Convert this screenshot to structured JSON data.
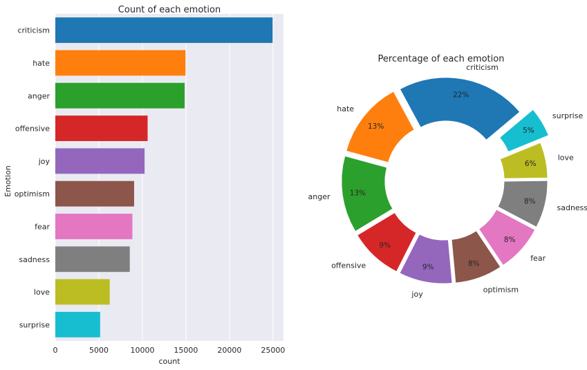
{
  "chart_data": [
    {
      "type": "bar",
      "orientation": "horizontal",
      "title": "Count of each emotion",
      "xlabel": "count",
      "ylabel": "Emotion",
      "xlim": [
        0,
        26200
      ],
      "xticks": [
        0,
        5000,
        10000,
        15000,
        20000,
        25000
      ],
      "xtick_labels": [
        "0",
        "5000",
        "10000",
        "15000",
        "20000",
        "25000"
      ],
      "grid": true,
      "categories": [
        "criticism",
        "hate",
        "anger",
        "offensive",
        "joy",
        "optimism",
        "fear",
        "sadness",
        "love",
        "surprise"
      ],
      "values": [
        24950,
        14950,
        14850,
        10600,
        10250,
        9050,
        8850,
        8550,
        6250,
        5150
      ],
      "colors": [
        "#1f77b4",
        "#ff7f0e",
        "#2ca02c",
        "#d62728",
        "#9467bd",
        "#8c564b",
        "#e377c2",
        "#7f7f7f",
        "#bcbd22",
        "#17becf"
      ]
    },
    {
      "type": "pie",
      "style": "donut",
      "title": "Percentage of each emotion",
      "labels": [
        "criticism",
        "hate",
        "anger",
        "offensive",
        "joy",
        "optimism",
        "fear",
        "sadness",
        "love",
        "surprise"
      ],
      "values": [
        22,
        13,
        13,
        9,
        9,
        8,
        8,
        8,
        6,
        5
      ],
      "pct_labels": [
        "22%",
        "13%",
        "13%",
        "9%",
        "9%",
        "8%",
        "8%",
        "8%",
        "6%",
        "5%"
      ],
      "explode": [
        0.1,
        0.1,
        0.1,
        0.1,
        0.1,
        0.1,
        0.1,
        0.1,
        0.1,
        0.25
      ],
      "colors": [
        "#1f77b4",
        "#ff7f0e",
        "#2ca02c",
        "#d62728",
        "#9467bd",
        "#8c564b",
        "#e377c2",
        "#7f7f7f",
        "#bcbd22",
        "#17becf"
      ],
      "start_angle_deg": 40,
      "counterclock": true
    }
  ]
}
